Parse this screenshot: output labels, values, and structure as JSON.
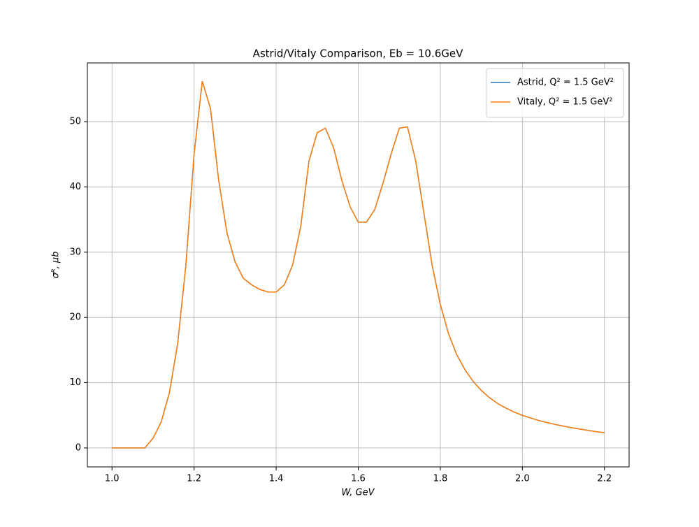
{
  "chart_data": {
    "type": "line",
    "title": "Astrid/Vitaly Comparison, Eb = 10.6GeV",
    "xlabel": "W, GeV",
    "ylabel": "σᴿ, μb",
    "x": [
      1.0,
      1.02,
      1.04,
      1.06,
      1.08,
      1.1,
      1.12,
      1.14,
      1.16,
      1.18,
      1.2,
      1.22,
      1.24,
      1.26,
      1.28,
      1.3,
      1.32,
      1.34,
      1.36,
      1.38,
      1.4,
      1.42,
      1.44,
      1.46,
      1.48,
      1.5,
      1.52,
      1.54,
      1.56,
      1.58,
      1.6,
      1.62,
      1.64,
      1.66,
      1.68,
      1.7,
      1.72,
      1.74,
      1.76,
      1.78,
      1.8,
      1.82,
      1.84,
      1.86,
      1.88,
      1.9,
      1.92,
      1.94,
      1.96,
      1.98,
      2.0,
      2.02,
      2.04,
      2.06,
      2.08,
      2.1,
      2.12,
      2.14,
      2.16,
      2.18,
      2.2
    ],
    "series": [
      {
        "name": "Astrid, Q² = 1.5 GeV²",
        "color": "#1f77b4",
        "values": [
          0,
          0,
          0,
          0,
          0,
          1.5,
          4,
          8.5,
          16,
          28,
          45,
          56.2,
          52,
          41,
          33,
          28.5,
          26,
          25,
          24.3,
          23.9,
          23.9,
          25,
          28,
          34,
          44,
          48.3,
          49,
          46,
          41,
          37,
          34.6,
          34.6,
          36.5,
          40.5,
          45,
          49,
          49.2,
          44,
          36,
          28,
          22,
          17.5,
          14.3,
          12,
          10.2,
          8.8,
          7.7,
          6.8,
          6.1,
          5.5,
          5,
          4.6,
          4.2,
          3.9,
          3.6,
          3.35,
          3.1,
          2.9,
          2.7,
          2.5,
          2.35
        ]
      },
      {
        "name": "Vitaly, Q² = 1.5 GeV²",
        "color": "#ff7f0e",
        "values": [
          0,
          0,
          0,
          0,
          0,
          1.5,
          4,
          8.5,
          16,
          28,
          45,
          56.2,
          52,
          41,
          33,
          28.5,
          26,
          25,
          24.3,
          23.9,
          23.9,
          25,
          28,
          34,
          44,
          48.3,
          49,
          46,
          41,
          37,
          34.6,
          34.6,
          36.5,
          40.5,
          45,
          49,
          49.2,
          44,
          36,
          28,
          22,
          17.5,
          14.3,
          12,
          10.2,
          8.8,
          7.7,
          6.8,
          6.1,
          5.5,
          5,
          4.6,
          4.2,
          3.9,
          3.6,
          3.35,
          3.1,
          2.9,
          2.7,
          2.5,
          2.35
        ]
      }
    ],
    "xlim": [
      0.94,
      2.26
    ],
    "xticks": [
      {
        "value": 1,
        "label": "1.0"
      },
      1.2,
      1.4,
      1.6,
      1.8,
      {
        "value": 2,
        "label": "2.0"
      },
      2.2
    ],
    "ylim": [
      -2.9,
      59
    ],
    "yticks": [
      0,
      10,
      20,
      30,
      40,
      50
    ],
    "grid": true,
    "legend": "upper right"
  }
}
